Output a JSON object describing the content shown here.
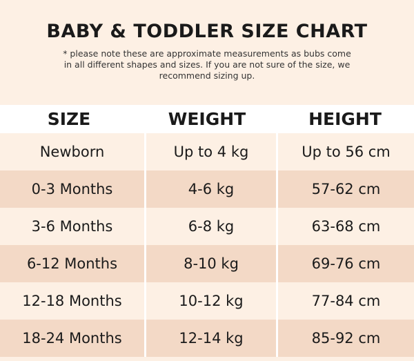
{
  "title": "BABY & TODDLER SIZE CHART",
  "note": "* please note these are approximate measurements as bubs come in all different shapes and sizes. If you are not sure of the size, we recommend sizing up.",
  "headers": [
    "SIZE",
    "WEIGHT",
    "HEIGHT"
  ],
  "rows": [
    [
      "Newborn",
      "Up to 4 kg",
      "Up to 56 cm"
    ],
    [
      "0-3 Months",
      "4-6 kg",
      "57-62 cm"
    ],
    [
      "3-6 Months",
      "6-8 kg",
      "63-68 cm"
    ],
    [
      "6-12 Months",
      "8-10 kg",
      "69-76 cm"
    ],
    [
      "12-18 Months",
      "10-12 kg",
      "77-84 cm"
    ],
    [
      "18-24 Months",
      "12-14 kg",
      "85-92 cm"
    ]
  ],
  "colors": {
    "light": "#fdf0e4",
    "dark": "#f3d9c6",
    "header": "#ffffff"
  }
}
